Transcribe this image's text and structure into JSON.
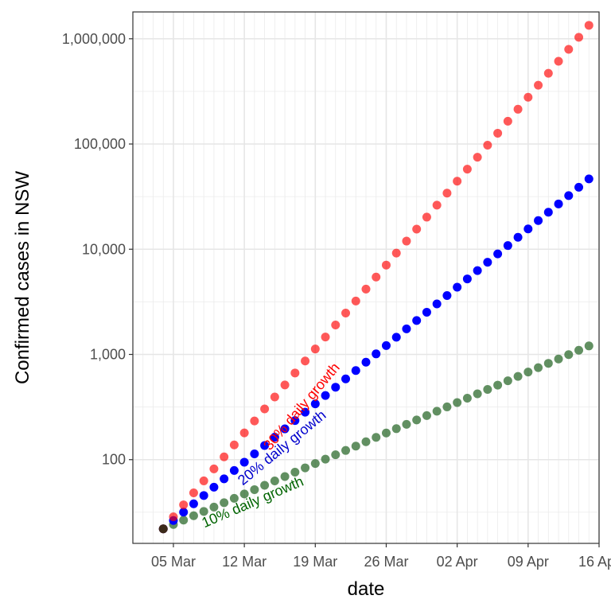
{
  "chart_data": {
    "type": "scatter",
    "title": "",
    "xlabel": "date",
    "ylabel": "Confirmed cases in NSW",
    "y_scale": "log10",
    "ylim": [
      16,
      1800000
    ],
    "xlim": [
      "2020-03-01",
      "2020-04-16"
    ],
    "grid": true,
    "legend": "none",
    "x_ticks": [
      {
        "date": "2020-03-05",
        "label": "05 Mar"
      },
      {
        "date": "2020-03-12",
        "label": "12 Mar"
      },
      {
        "date": "2020-03-19",
        "label": "19 Mar"
      },
      {
        "date": "2020-03-26",
        "label": "26 Mar"
      },
      {
        "date": "2020-04-02",
        "label": "02 Apr"
      },
      {
        "date": "2020-04-09",
        "label": "09 Apr"
      },
      {
        "date": "2020-04-16",
        "label": "16 Apr"
      }
    ],
    "y_ticks": [
      {
        "value": 100,
        "label": "100"
      },
      {
        "value": 1000,
        "label": "1,000"
      },
      {
        "value": 10000,
        "label": "10,000"
      },
      {
        "value": 100000,
        "label": "100,000"
      },
      {
        "value": 1000000,
        "label": "1,000,000"
      }
    ],
    "start_point": {
      "date": "2020-03-04",
      "value": 22,
      "color": "#3b2a1a"
    },
    "series": [
      {
        "name": "30% daily growth",
        "color": "#ff0000",
        "opacity": 0.65,
        "start_date": "2020-03-04",
        "end_date": "2020-04-15",
        "start_value": 22,
        "daily_growth": 0.3
      },
      {
        "name": "20% daily growth",
        "color": "#0000ff",
        "opacity": 1.0,
        "start_date": "2020-03-04",
        "end_date": "2020-04-15",
        "start_value": 22,
        "daily_growth": 0.2
      },
      {
        "name": "10% daily growth",
        "color": "#2e6b2e",
        "opacity": 0.75,
        "start_date": "2020-03-04",
        "end_date": "2020-04-15",
        "start_value": 22,
        "daily_growth": 0.1
      }
    ],
    "annotations": [
      {
        "text": "30% daily growth",
        "color": "#ff0000",
        "date": "2020-03-18",
        "value": 300
      },
      {
        "text": "20% daily growth",
        "color": "#0000cd",
        "date": "2020-03-16",
        "value": 120
      },
      {
        "text": "10% daily growth",
        "color": "#006400",
        "date": "2020-03-13",
        "value": 36
      }
    ]
  }
}
